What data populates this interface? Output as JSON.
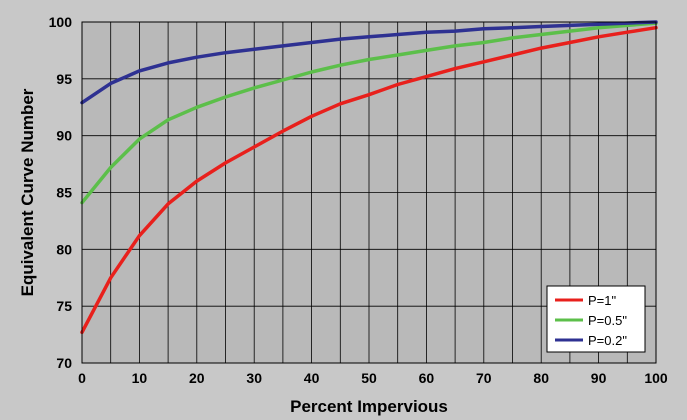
{
  "chart_data": {
    "type": "line",
    "title": "",
    "xlabel": "Percent Impervious",
    "ylabel": "Equivalent Curve Number",
    "xlim": [
      0,
      100
    ],
    "ylim": [
      70,
      100
    ],
    "x_ticks": [
      0,
      10,
      20,
      30,
      40,
      50,
      60,
      70,
      80,
      90,
      100
    ],
    "y_ticks": [
      70,
      75,
      80,
      85,
      90,
      95,
      100
    ],
    "x_tick_labels": [
      "0",
      "10",
      "20",
      "30",
      "40",
      "50",
      "60",
      "70",
      "80",
      "90",
      "100"
    ],
    "y_tick_labels": [
      "70",
      "75",
      "80",
      "85",
      "90",
      "95",
      "100"
    ],
    "x_gridline_step": 5,
    "y_gridline_step": 5,
    "grid": true,
    "legend_position": "bottom-right",
    "background_color": "#c8c8c8",
    "plot_background_color": "#b9b9b9",
    "grid_color": "#000000",
    "x": [
      0,
      5,
      10,
      15,
      20,
      25,
      30,
      35,
      40,
      45,
      50,
      55,
      60,
      65,
      70,
      75,
      80,
      85,
      90,
      95,
      100
    ],
    "series": [
      {
        "name": "P=1\"",
        "color": "#e8201c",
        "values": [
          72.7,
          77.5,
          81.2,
          84.0,
          86.0,
          87.6,
          89.0,
          90.4,
          91.7,
          92.8,
          93.6,
          94.5,
          95.2,
          95.9,
          96.5,
          97.1,
          97.7,
          98.2,
          98.7,
          99.1,
          99.5
        ]
      },
      {
        "name": "P=0.5\"",
        "color": "#5cbf4a",
        "values": [
          84.1,
          87.2,
          89.7,
          91.4,
          92.5,
          93.4,
          94.2,
          94.9,
          95.6,
          96.2,
          96.7,
          97.1,
          97.5,
          97.9,
          98.2,
          98.6,
          98.9,
          99.2,
          99.5,
          99.7,
          99.9
        ]
      },
      {
        "name": "P=0.2\"",
        "color": "#2e3192",
        "values": [
          92.9,
          94.6,
          95.7,
          96.4,
          96.9,
          97.3,
          97.6,
          97.9,
          98.2,
          98.5,
          98.7,
          98.9,
          99.1,
          99.2,
          99.4,
          99.5,
          99.6,
          99.7,
          99.8,
          99.9,
          100.0
        ]
      }
    ]
  }
}
